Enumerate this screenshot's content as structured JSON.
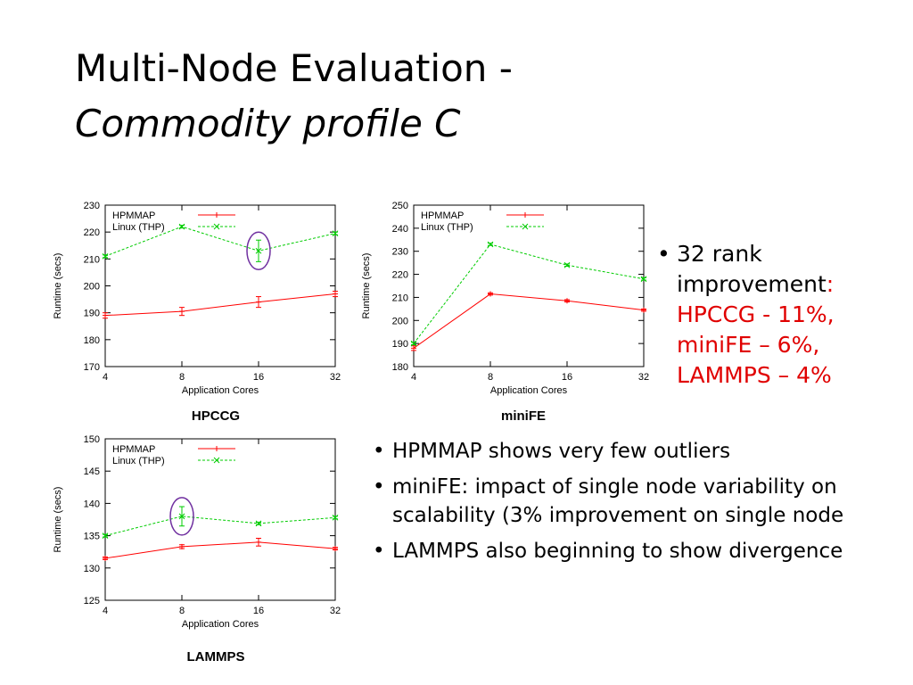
{
  "slide": {
    "title_line1": "Multi-Node Evaluation -",
    "title_line2": "Commodity profile C"
  },
  "bullets_right": {
    "first": {
      "lead": "32 rank improvement",
      "colon": ":",
      "l1": "HPCCG - 11%,",
      "l2": "miniFE – 6%,",
      "l3": "LAMMPS – 4%"
    },
    "items": [
      "HPMMAP shows very few outliers",
      "miniFE: impact of single node variability on scalability (3% improvement on single node",
      "LAMMPS also beginning to show divergence"
    ],
    "bullet_char": "•",
    "highlight_color": "#e00000"
  },
  "chart_data": [
    {
      "type": "line",
      "title": "HPCCG",
      "xlabel": "Application Cores",
      "ylabel": "Runtime (secs)",
      "x": [
        4,
        8,
        16,
        32
      ],
      "xticks": [
        "4",
        "8",
        "16",
        "32"
      ],
      "ylim": [
        170,
        230
      ],
      "yticks": [
        170,
        180,
        190,
        200,
        210,
        220,
        230
      ],
      "series": [
        {
          "name": "HPMMAP",
          "color": "#ff0000",
          "dash": false,
          "marker": "+",
          "values": [
            189,
            190.5,
            194,
            197
          ],
          "err": [
            1,
            1.5,
            2,
            1
          ]
        },
        {
          "name": "Linux (THP)",
          "color": "#00cc00",
          "dash": true,
          "marker": "x",
          "values": [
            211,
            222,
            213,
            219.5
          ],
          "err": [
            0.5,
            0.5,
            4,
            0.5
          ]
        }
      ],
      "legend": "top-left",
      "highlight": {
        "x": 16,
        "y": 213
      }
    },
    {
      "type": "line",
      "title": "miniFE",
      "xlabel": "Application Cores",
      "ylabel": "Runtime (secs)",
      "x": [
        4,
        8,
        16,
        32
      ],
      "xticks": [
        "4",
        "8",
        "16",
        "32"
      ],
      "ylim": [
        180,
        250
      ],
      "yticks": [
        180,
        190,
        200,
        210,
        220,
        230,
        240,
        250
      ],
      "series": [
        {
          "name": "HPMMAP",
          "color": "#ff0000",
          "dash": false,
          "marker": "+",
          "values": [
            188,
            211.5,
            208.5,
            204.5
          ],
          "err": [
            1,
            0.5,
            0.5,
            0.5
          ]
        },
        {
          "name": "Linux (THP)",
          "color": "#00cc00",
          "dash": true,
          "marker": "x",
          "values": [
            190,
            233,
            224,
            218
          ],
          "err": [
            0.5,
            0.5,
            0.5,
            0.5
          ]
        }
      ],
      "legend": "top-left",
      "highlight": null
    },
    {
      "type": "line",
      "title": "LAMMPS",
      "xlabel": "Application Cores",
      "ylabel": "Runtime (secs)",
      "x": [
        4,
        8,
        16,
        32
      ],
      "xticks": [
        "4",
        "8",
        "16",
        "32"
      ],
      "ylim": [
        125,
        150
      ],
      "yticks": [
        125,
        130,
        135,
        140,
        145,
        150
      ],
      "series": [
        {
          "name": "HPMMAP",
          "color": "#ff0000",
          "dash": false,
          "marker": "+",
          "values": [
            131.5,
            133.3,
            134,
            133
          ],
          "err": [
            0.2,
            0.3,
            0.6,
            0.2
          ]
        },
        {
          "name": "Linux (THP)",
          "color": "#00cc00",
          "dash": true,
          "marker": "x",
          "values": [
            135,
            138,
            136.9,
            137.8
          ],
          "err": [
            0.2,
            1.5,
            0.2,
            0.2
          ]
        }
      ],
      "legend": "top-left",
      "highlight": {
        "x": 8,
        "y": 138
      }
    }
  ]
}
